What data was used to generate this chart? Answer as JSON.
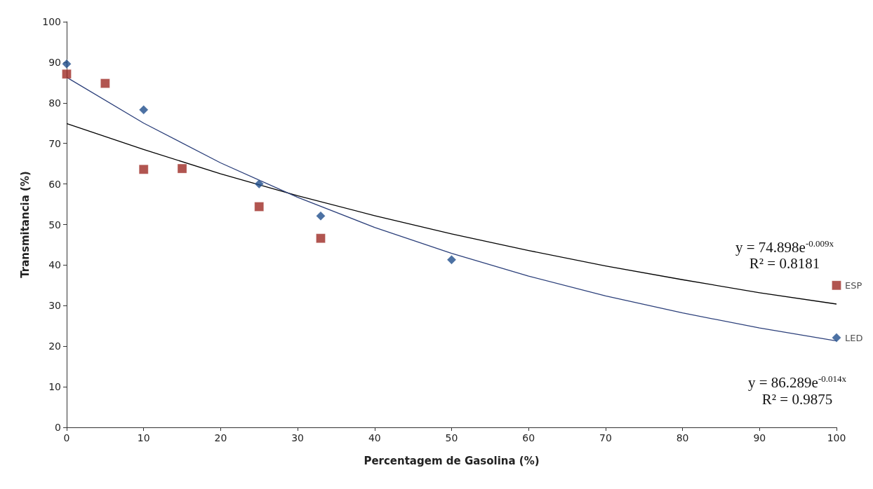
{
  "chart_data": {
    "type": "scatter",
    "xlabel": "Percentagem de Gasolina (%)",
    "ylabel": "Transmitancia (%)",
    "xlim": [
      0,
      100
    ],
    "xticks": [
      0,
      10,
      20,
      30,
      40,
      50,
      60,
      70,
      80,
      90,
      100
    ],
    "ylim": [
      0,
      100
    ],
    "yticks": [
      0,
      10,
      20,
      30,
      40,
      50,
      60,
      70,
      80,
      90,
      100
    ],
    "grid": false,
    "series": [
      {
        "name": "ESP",
        "type": "scatter",
        "marker": "square",
        "color": "#9e2a24",
        "x": [
          0,
          5,
          10,
          15,
          25,
          33,
          100
        ],
        "values": [
          87.1,
          84.8,
          63.6,
          63.8,
          54.4,
          46.6,
          35.0
        ]
      },
      {
        "name": "LED",
        "type": "scatter",
        "marker": "diamond",
        "color": "#1f4e8c",
        "x": [
          0,
          10,
          25,
          33,
          50,
          100
        ],
        "values": [
          89.6,
          78.3,
          60.0,
          52.1,
          41.3,
          22.1
        ]
      },
      {
        "type": "line",
        "marker": "none",
        "color": "#000000",
        "x": [
          0,
          10,
          20,
          30,
          40,
          50,
          60,
          70,
          80,
          90,
          100
        ],
        "values": [
          74.9,
          68.5,
          62.5,
          57.1,
          52.2,
          47.7,
          43.6,
          39.8,
          36.4,
          33.2,
          30.4
        ]
      },
      {
        "type": "line",
        "marker": "none",
        "color": "#2b3f7a",
        "x": [
          0,
          10,
          20,
          30,
          40,
          50,
          60,
          70,
          80,
          90,
          100
        ],
        "values": [
          86.3,
          75.0,
          65.2,
          56.7,
          49.3,
          42.9,
          37.3,
          32.4,
          28.2,
          24.5,
          21.3
        ]
      }
    ],
    "annotations": [
      "y = 74.898e$^{-0.009x}$",
      "R² = 0.8181",
      "y = 86.289e$^{-0.014x}$",
      "R² = 0.9875"
    ]
  }
}
